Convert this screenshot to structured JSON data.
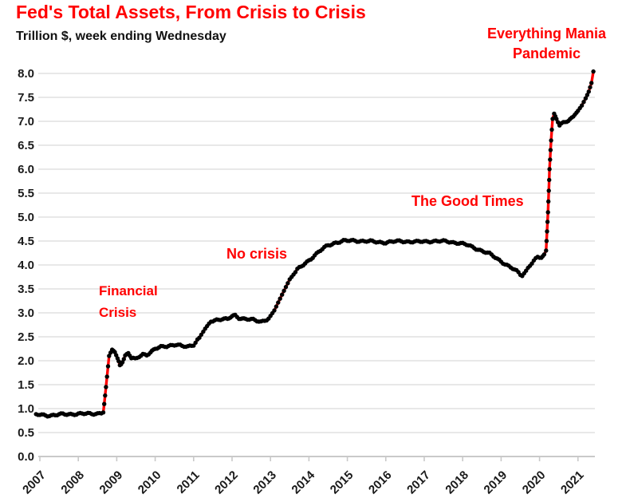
{
  "title": "Fed's Total Assets, From Crisis to Crisis",
  "subtitle": "Trillion $, week ending Wednesday",
  "annotations": {
    "financial_crisis": {
      "line1": "Financial",
      "line2": "Crisis"
    },
    "no_crisis": {
      "text": "No crisis"
    },
    "good_times": {
      "text": "The Good Times"
    },
    "everything_mania": {
      "line1": "Everything Mania",
      "line2": "Pandemic"
    }
  },
  "colors": {
    "accent_red": "#FF0000",
    "marker_black": "#000000",
    "grid_gray": "#D9D9D9",
    "axis_gray": "#C9C9C9",
    "text_dark": "#1A1A1A"
  },
  "chart_data": {
    "type": "line",
    "title": "Fed's Total Assets, From Crisis to Crisis",
    "subtitle": "Trillion $, week ending Wednesday",
    "xlabel": "",
    "ylabel": "Trillion $",
    "grid": "horizontal",
    "legend": "none",
    "ylim": [
      0.0,
      8.0
    ],
    "x_range_years": [
      2007,
      2021.5
    ],
    "x_tick_labels": [
      "2007",
      "2008",
      "2009",
      "2010",
      "2011",
      "2012",
      "2013",
      "2014",
      "2015",
      "2016",
      "2017",
      "2018",
      "2019",
      "2020",
      "2021"
    ],
    "y_tick_labels": [
      "0.0",
      "0.5",
      "1.0",
      "1.5",
      "2.0",
      "2.5",
      "3.0",
      "3.5",
      "4.0",
      "4.5",
      "5.0",
      "5.5",
      "6.0",
      "6.5",
      "7.0",
      "7.5",
      "8.0"
    ],
    "series": [
      {
        "name": "Fed total assets, trillion $, week ending Wednesday",
        "line_color": "#FF0000",
        "marker_color": "#000000",
        "points": [
          [
            2006.9,
            0.87
          ],
          [
            2007.0,
            0.87
          ],
          [
            2007.3,
            0.86
          ],
          [
            2007.6,
            0.88
          ],
          [
            2007.9,
            0.89
          ],
          [
            2008.2,
            0.89
          ],
          [
            2008.5,
            0.9
          ],
          [
            2008.65,
            0.92
          ],
          [
            2008.72,
            1.45
          ],
          [
            2008.8,
            2.1
          ],
          [
            2008.88,
            2.24
          ],
          [
            2008.95,
            2.18
          ],
          [
            2009.02,
            2.05
          ],
          [
            2009.08,
            1.93
          ],
          [
            2009.15,
            1.97
          ],
          [
            2009.22,
            2.1
          ],
          [
            2009.3,
            2.16
          ],
          [
            2009.38,
            2.05
          ],
          [
            2009.48,
            2.03
          ],
          [
            2009.58,
            2.09
          ],
          [
            2009.68,
            2.14
          ],
          [
            2009.78,
            2.13
          ],
          [
            2009.88,
            2.17
          ],
          [
            2010.0,
            2.24
          ],
          [
            2010.15,
            2.29
          ],
          [
            2010.35,
            2.32
          ],
          [
            2010.55,
            2.33
          ],
          [
            2010.7,
            2.3
          ],
          [
            2010.85,
            2.3
          ],
          [
            2011.0,
            2.34
          ],
          [
            2011.15,
            2.48
          ],
          [
            2011.3,
            2.67
          ],
          [
            2011.45,
            2.83
          ],
          [
            2011.6,
            2.86
          ],
          [
            2011.75,
            2.87
          ],
          [
            2011.88,
            2.86
          ],
          [
            2012.0,
            2.93
          ],
          [
            2012.08,
            2.95
          ],
          [
            2012.18,
            2.9
          ],
          [
            2012.35,
            2.87
          ],
          [
            2012.55,
            2.85
          ],
          [
            2012.75,
            2.82
          ],
          [
            2012.95,
            2.88
          ],
          [
            2013.1,
            3.05
          ],
          [
            2013.3,
            3.38
          ],
          [
            2013.5,
            3.7
          ],
          [
            2013.7,
            3.9
          ],
          [
            2013.9,
            4.03
          ],
          [
            2014.1,
            4.17
          ],
          [
            2014.3,
            4.3
          ],
          [
            2014.5,
            4.41
          ],
          [
            2014.7,
            4.47
          ],
          [
            2014.9,
            4.5
          ],
          [
            2015.2,
            4.51
          ],
          [
            2015.6,
            4.49
          ],
          [
            2016.0,
            4.47
          ],
          [
            2016.4,
            4.5
          ],
          [
            2016.8,
            4.48
          ],
          [
            2017.2,
            4.5
          ],
          [
            2017.6,
            4.49
          ],
          [
            2017.9,
            4.46
          ],
          [
            2018.1,
            4.42
          ],
          [
            2018.4,
            4.33
          ],
          [
            2018.7,
            4.23
          ],
          [
            2019.0,
            4.08
          ],
          [
            2019.2,
            3.97
          ],
          [
            2019.4,
            3.87
          ],
          [
            2019.55,
            3.77
          ],
          [
            2019.65,
            3.88
          ],
          [
            2019.75,
            4.0
          ],
          [
            2019.85,
            4.08
          ],
          [
            2019.95,
            4.16
          ],
          [
            2020.05,
            4.15
          ],
          [
            2020.12,
            4.22
          ],
          [
            2020.17,
            4.3
          ],
          [
            2020.22,
            5.1
          ],
          [
            2020.26,
            6.0
          ],
          [
            2020.3,
            6.6
          ],
          [
            2020.34,
            7.05
          ],
          [
            2020.38,
            7.16
          ],
          [
            2020.44,
            7.05
          ],
          [
            2020.52,
            6.91
          ],
          [
            2020.62,
            6.96
          ],
          [
            2020.75,
            7.02
          ],
          [
            2020.88,
            7.1
          ],
          [
            2021.0,
            7.22
          ],
          [
            2021.1,
            7.33
          ],
          [
            2021.2,
            7.48
          ],
          [
            2021.28,
            7.62
          ],
          [
            2021.35,
            7.8
          ],
          [
            2021.4,
            8.04
          ]
        ]
      }
    ]
  }
}
